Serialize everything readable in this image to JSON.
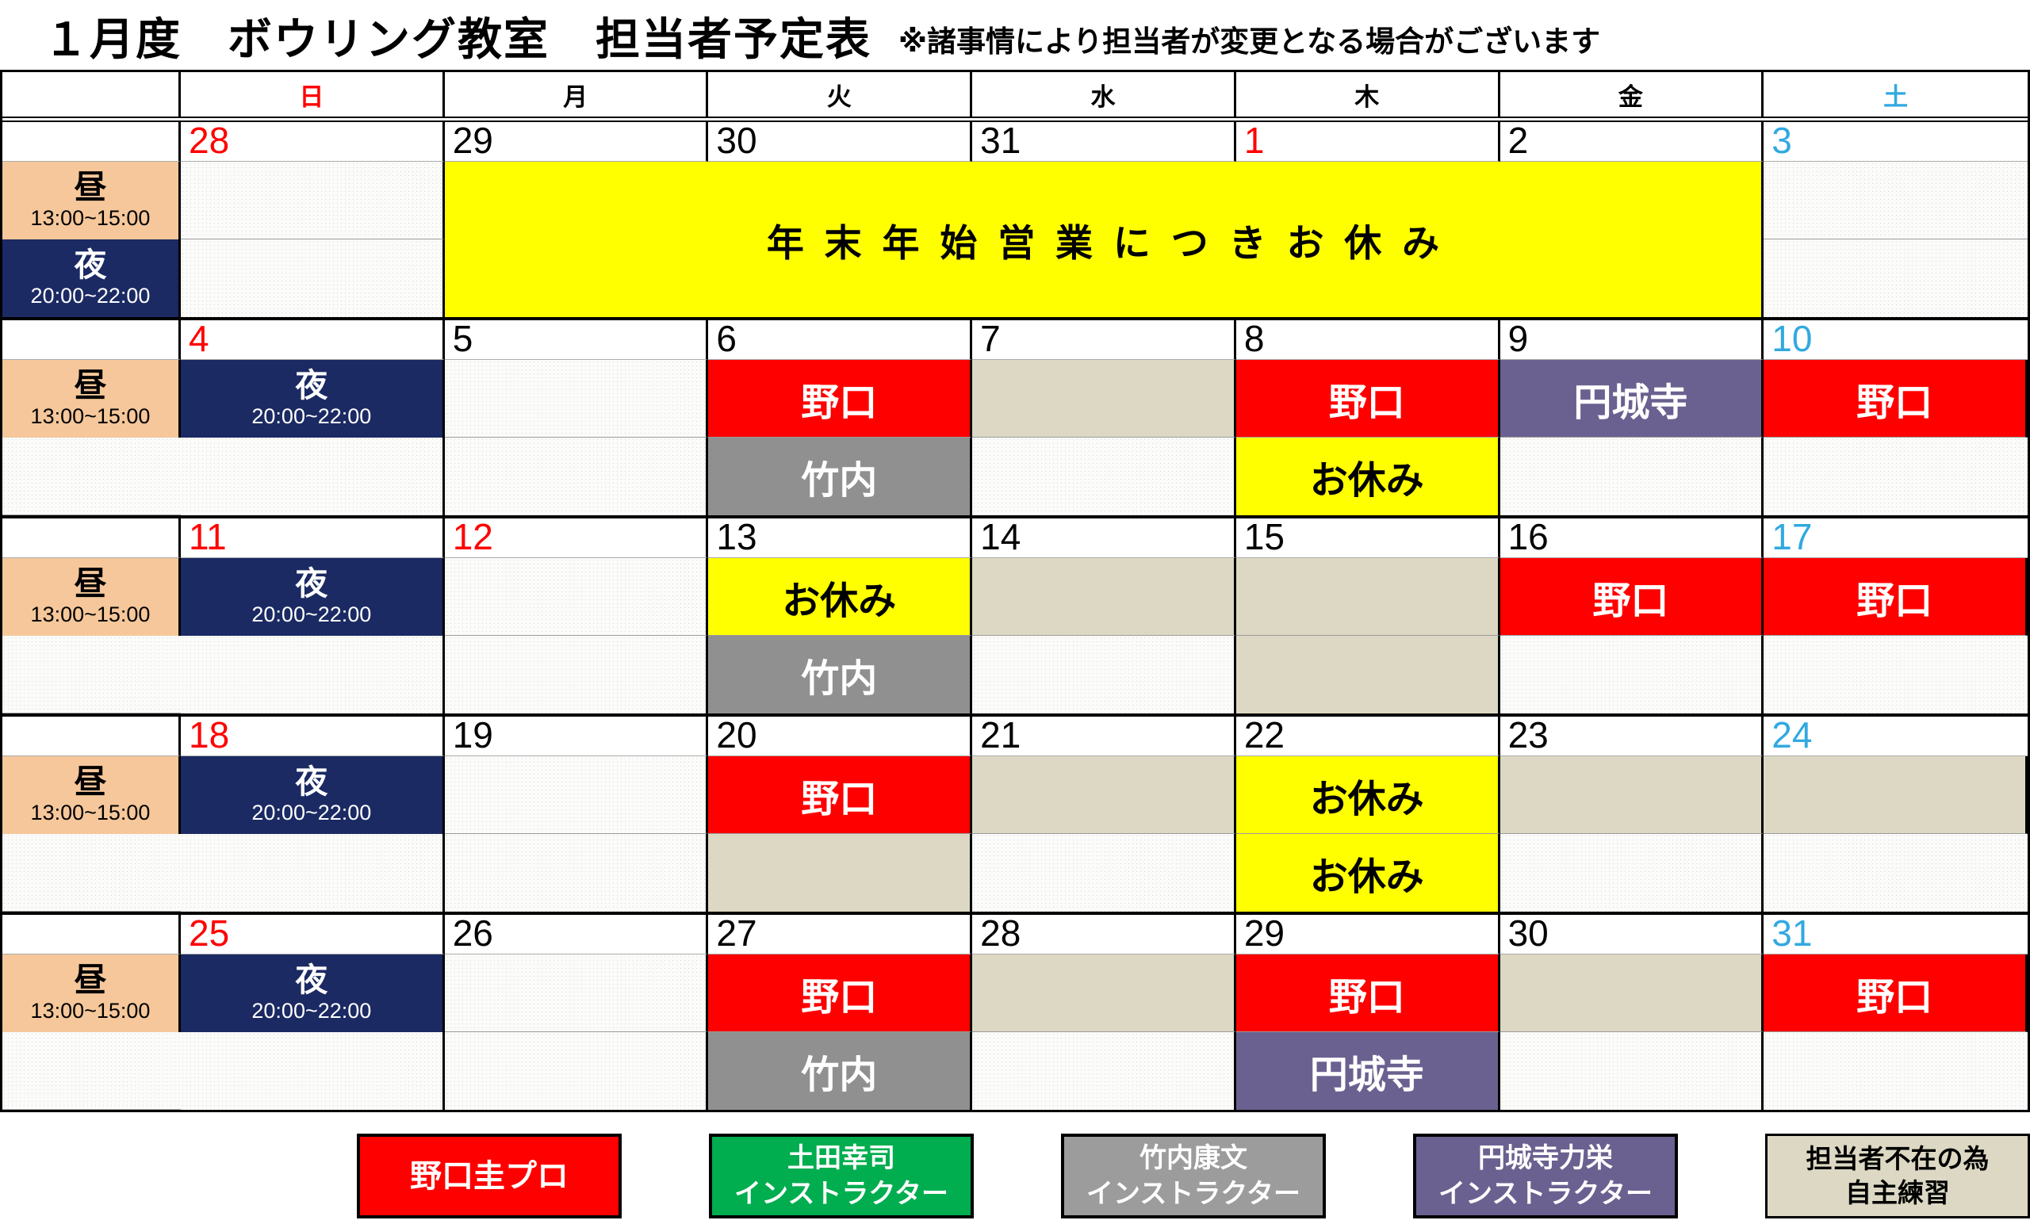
{
  "title": "１月度　ボウリング教室　担当者予定表",
  "subtitle": "※諸事情により担当者が変更となる場合がございます",
  "weekday_header": [
    {
      "label": "日",
      "key": "sun",
      "color": "#FF0000"
    },
    {
      "label": "月",
      "key": "mon",
      "color": "#000000"
    },
    {
      "label": "火",
      "key": "tue",
      "color": "#000000"
    },
    {
      "label": "水",
      "key": "wed",
      "color": "#000000"
    },
    {
      "label": "木",
      "key": "thu",
      "color": "#000000"
    },
    {
      "label": "金",
      "key": "fri",
      "color": "#000000"
    },
    {
      "label": "土",
      "key": "sat",
      "color": "#31A9E0"
    }
  ],
  "time_rows": {
    "noon": {
      "label": "昼",
      "time": "13:00~15:00"
    },
    "night": {
      "label": "夜",
      "time": "20:00~22:00"
    }
  },
  "holiday_banner": {
    "text": "年末年始営業につきお休み"
  },
  "weeks": [
    {
      "banner": true,
      "dates": [
        {
          "d": "28",
          "c": "red"
        },
        {
          "d": "29",
          "c": "black"
        },
        {
          "d": "30",
          "c": "black"
        },
        {
          "d": "31",
          "c": "black"
        },
        {
          "d": "1",
          "c": "red"
        },
        {
          "d": "2",
          "c": "black"
        },
        {
          "d": "3",
          "c": "blue"
        }
      ],
      "noon": [
        {
          "type": "empty"
        },
        null,
        null,
        null,
        null,
        null,
        {
          "type": "empty"
        }
      ],
      "night": [
        {
          "type": "empty"
        },
        null,
        null,
        null,
        null,
        null,
        {
          "type": "empty"
        }
      ]
    },
    {
      "banner": false,
      "dates": [
        {
          "d": "4",
          "c": "red"
        },
        {
          "d": "5",
          "c": "black"
        },
        {
          "d": "6",
          "c": "black"
        },
        {
          "d": "7",
          "c": "black"
        },
        {
          "d": "8",
          "c": "black"
        },
        {
          "d": "9",
          "c": "black"
        },
        {
          "d": "10",
          "c": "blue"
        }
      ],
      "noon": [
        {
          "type": "empty"
        },
        {
          "type": "noguchi",
          "text": "野口"
        },
        {
          "type": "jishu"
        },
        {
          "type": "noguchi",
          "text": "野口"
        },
        {
          "type": "enjoji",
          "text": "円城寺"
        },
        {
          "type": "noguchi",
          "text": "野口"
        },
        {
          "type": "empty"
        }
      ],
      "night": [
        {
          "type": "empty"
        },
        {
          "type": "empty"
        },
        {
          "type": "takeuchi",
          "text": "竹内"
        },
        {
          "type": "empty"
        },
        {
          "type": "oyasumi",
          "text": "お休み"
        },
        {
          "type": "empty"
        },
        {
          "type": "empty"
        }
      ]
    },
    {
      "banner": false,
      "dates": [
        {
          "d": "11",
          "c": "red"
        },
        {
          "d": "12",
          "c": "red"
        },
        {
          "d": "13",
          "c": "black"
        },
        {
          "d": "14",
          "c": "black"
        },
        {
          "d": "15",
          "c": "black"
        },
        {
          "d": "16",
          "c": "black"
        },
        {
          "d": "17",
          "c": "blue"
        }
      ],
      "noon": [
        {
          "type": "empty"
        },
        {
          "type": "oyasumi",
          "text": "お休み"
        },
        {
          "type": "jishu"
        },
        {
          "type": "jishu"
        },
        {
          "type": "noguchi",
          "text": "野口"
        },
        {
          "type": "noguchi",
          "text": "野口"
        },
        {
          "type": "empty"
        }
      ],
      "night": [
        {
          "type": "empty"
        },
        {
          "type": "empty"
        },
        {
          "type": "takeuchi",
          "text": "竹内"
        },
        {
          "type": "empty"
        },
        {
          "type": "jishu"
        },
        {
          "type": "empty"
        },
        {
          "type": "empty"
        }
      ]
    },
    {
      "banner": false,
      "dates": [
        {
          "d": "18",
          "c": "red"
        },
        {
          "d": "19",
          "c": "black"
        },
        {
          "d": "20",
          "c": "black"
        },
        {
          "d": "21",
          "c": "black"
        },
        {
          "d": "22",
          "c": "black"
        },
        {
          "d": "23",
          "c": "black"
        },
        {
          "d": "24",
          "c": "blue"
        }
      ],
      "noon": [
        {
          "type": "empty"
        },
        {
          "type": "noguchi",
          "text": "野口"
        },
        {
          "type": "jishu"
        },
        {
          "type": "oyasumi",
          "text": "お休み"
        },
        {
          "type": "jishu"
        },
        {
          "type": "jishu"
        },
        {
          "type": "empty"
        }
      ],
      "night": [
        {
          "type": "empty"
        },
        {
          "type": "empty"
        },
        {
          "type": "jishu"
        },
        {
          "type": "empty"
        },
        {
          "type": "oyasumi",
          "text": "お休み"
        },
        {
          "type": "empty"
        },
        {
          "type": "empty"
        }
      ]
    },
    {
      "banner": false,
      "dates": [
        {
          "d": "25",
          "c": "red"
        },
        {
          "d": "26",
          "c": "black"
        },
        {
          "d": "27",
          "c": "black"
        },
        {
          "d": "28",
          "c": "black"
        },
        {
          "d": "29",
          "c": "black"
        },
        {
          "d": "30",
          "c": "black"
        },
        {
          "d": "31",
          "c": "blue"
        }
      ],
      "noon": [
        {
          "type": "empty"
        },
        {
          "type": "noguchi",
          "text": "野口"
        },
        {
          "type": "jishu"
        },
        {
          "type": "noguchi",
          "text": "野口"
        },
        {
          "type": "jishu"
        },
        {
          "type": "noguchi",
          "text": "野口"
        },
        {
          "type": "empty"
        }
      ],
      "night": [
        {
          "type": "empty"
        },
        {
          "type": "empty"
        },
        {
          "type": "takeuchi",
          "text": "竹内"
        },
        {
          "type": "empty"
        },
        {
          "type": "enjoji",
          "text": "円城寺"
        },
        {
          "type": "empty"
        },
        {
          "type": "empty"
        }
      ]
    }
  ],
  "legend": [
    {
      "type": "noguchi",
      "lines": [
        "野口圭プロ"
      ]
    },
    {
      "type": "tsuchida",
      "lines": [
        "土田幸司",
        "インストラクター"
      ]
    },
    {
      "type": "takeuchi",
      "lines": [
        "竹内康文",
        "インストラクター"
      ]
    },
    {
      "type": "enjoji",
      "lines": [
        "円城寺力栄",
        "インストラクター"
      ]
    },
    {
      "type": "jishu",
      "lines": [
        "担当者不在の為",
        "自主練習"
      ]
    }
  ],
  "colors": {
    "noguchi_red": "#FF0000",
    "tsuchida_green": "#00AD4F",
    "takeuchi_gray": "#909090",
    "enjoji_purple": "#6B6190",
    "jishu_tan": "#DCD8C3",
    "oyasumi_yellow": "#FFFF00",
    "noon_label_bg": "#F5C79A",
    "night_label_bg": "#1B2A63",
    "sunday_text": "#FF0000",
    "saturday_text": "#31A9E0"
  }
}
